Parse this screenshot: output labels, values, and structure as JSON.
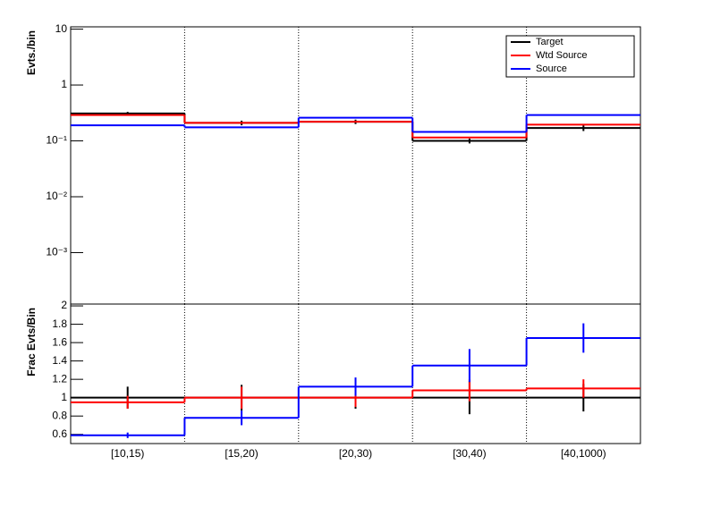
{
  "chart_data": [
    {
      "type": "step",
      "y_label": "Evts./bin",
      "log_scale": true,
      "legend": "top-right",
      "x_grid": true,
      "ylim": [
        0.00012,
        11
      ],
      "yticks": [
        10,
        1,
        {
          "value": 0.1,
          "label": "10⁻¹"
        },
        {
          "value": 0.01,
          "label": "10⁻²"
        },
        {
          "value": 0.001,
          "label": "10⁻³"
        }
      ],
      "series": [
        {
          "name": "Target",
          "color": "#000000",
          "values": [
            0.31,
            0.21,
            0.22,
            0.1,
            0.17
          ],
          "errors": [
            0.02,
            0.02,
            0.02,
            0.01,
            0.02
          ]
        },
        {
          "name": "Wtd Source",
          "color": "#ff0000",
          "values": [
            0.29,
            0.21,
            0.22,
            0.115,
            0.195
          ]
        },
        {
          "name": "Source",
          "color": "#0000ff",
          "values": [
            0.19,
            0.175,
            0.26,
            0.145,
            0.29
          ]
        }
      ]
    },
    {
      "type": "step",
      "y_label": "Frac Evts/Bin",
      "x_grid": true,
      "categories": [
        "[10,15)",
        "[15,20)",
        "[20,30)",
        "[30,40)",
        "[40,1000)"
      ],
      "ylim": [
        0.5,
        2.02
      ],
      "yticks": [
        0.6,
        0.8,
        1,
        1.2,
        1.4,
        1.6,
        1.8,
        2
      ],
      "series": [
        {
          "color": "#000000",
          "values": [
            1,
            1,
            1,
            1,
            1
          ],
          "errors": [
            0.12,
            0.14,
            0.12,
            0.18,
            0.15
          ]
        },
        {
          "color": "#ff0000",
          "values": [
            0.95,
            1.0,
            1.0,
            1.08,
            1.1
          ],
          "errors": [
            0.07,
            0.12,
            0.1,
            0.12,
            0.1
          ]
        },
        {
          "color": "#0000ff",
          "values": [
            0.59,
            0.78,
            1.12,
            1.35,
            1.65
          ],
          "errors": [
            0.03,
            0.08,
            0.1,
            0.18,
            0.16
          ]
        }
      ]
    }
  ]
}
